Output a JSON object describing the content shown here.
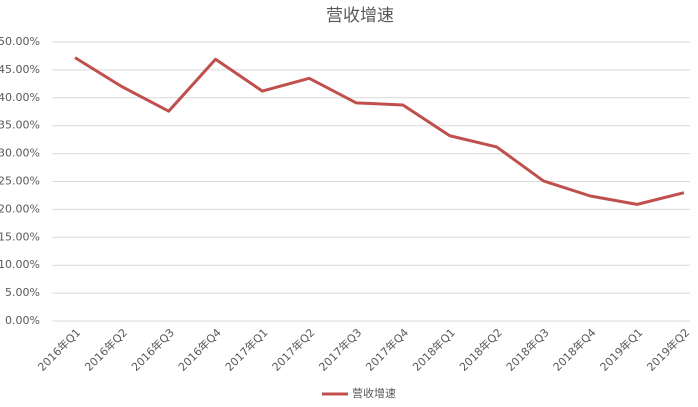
{
  "chart_data": {
    "type": "line",
    "title": "营收增速",
    "categories": [
      "2016年Q1",
      "2016年Q2",
      "2016年Q3",
      "2016年Q4",
      "2017年Q1",
      "2017年Q2",
      "2017年Q3",
      "2017年Q4",
      "2018年Q1",
      "2018年Q2",
      "2018年Q3",
      "2018年Q4",
      "2019年Q1",
      "2019年Q2"
    ],
    "series": [
      {
        "name": "营收增速",
        "color": "#c0504d",
        "values": [
          47.2,
          42.0,
          37.6,
          46.9,
          41.2,
          43.5,
          39.1,
          38.7,
          33.2,
          31.2,
          25.1,
          22.4,
          20.9,
          23.0
        ]
      }
    ],
    "ylim": [
      0,
      50
    ],
    "yticks": [
      {
        "value": 0,
        "label": "0.00%"
      },
      {
        "value": 5,
        "label": "5.00%"
      },
      {
        "value": 10,
        "label": "10.00%"
      },
      {
        "value": 15,
        "label": "15.00%"
      },
      {
        "value": 20,
        "label": "20.00%"
      },
      {
        "value": 25,
        "label": "25.00%"
      },
      {
        "value": 30,
        "label": "30.00%"
      },
      {
        "value": 35,
        "label": "35.00%"
      },
      {
        "value": 40,
        "label": "40.00%"
      },
      {
        "value": 45,
        "label": "45.00%"
      },
      {
        "value": 50,
        "label": "50.00%"
      }
    ],
    "grid": true,
    "legend": "bottom"
  }
}
